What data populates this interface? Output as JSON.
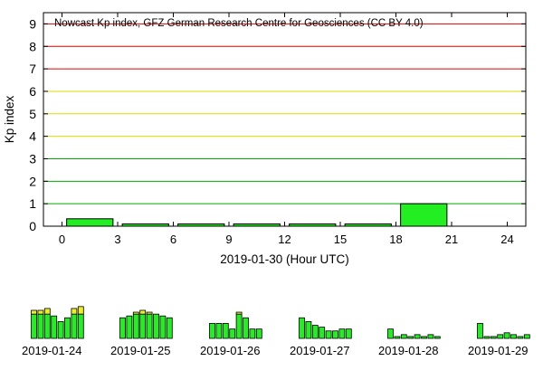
{
  "chart_data": [
    {
      "type": "bar",
      "title": "Nowcast Kp index, GFZ German Research Centre for Geosciences (CC BY 4.0)",
      "xlabel": "2019-01-30 (Hour UTC)",
      "ylabel": "Kp index",
      "xlim": [
        -1,
        25
      ],
      "ylim": [
        0,
        9.5
      ],
      "x_ticks": [
        0,
        3,
        6,
        9,
        12,
        15,
        18,
        21,
        24
      ],
      "y_ticks": [
        0,
        1,
        2,
        3,
        4,
        5,
        6,
        7,
        8,
        9
      ],
      "bar_width_hours": 2.5,
      "bars": [
        {
          "x": 1.5,
          "value": 0.33
        },
        {
          "x": 4.5,
          "value": 0.1
        },
        {
          "x": 7.5,
          "value": 0.1
        },
        {
          "x": 10.5,
          "value": 0.1
        },
        {
          "x": 13.5,
          "value": 0.1
        },
        {
          "x": 16.5,
          "value": 0.1
        },
        {
          "x": 19.5,
          "value": 1.0
        }
      ],
      "gridlines": [
        {
          "y": 1,
          "color": "#00aa00"
        },
        {
          "y": 2,
          "color": "#00aa00"
        },
        {
          "y": 3,
          "color": "#00aa00"
        },
        {
          "y": 4,
          "color": "#dddd00"
        },
        {
          "y": 5,
          "color": "#dddd00"
        },
        {
          "y": 6,
          "color": "#dddd00"
        },
        {
          "y": 7,
          "color": "#dd0000"
        },
        {
          "y": 8,
          "color": "#dd0000"
        },
        {
          "y": 9,
          "color": "#dd0000"
        }
      ],
      "colors": {
        "bar": "#22ee22",
        "bar_stroke": "#000000",
        "warn": "#eeee22"
      },
      "grid": true
    },
    {
      "type": "bar",
      "label": "2019-01-24",
      "values": [
        5.0,
        5.0,
        5.33,
        4.0,
        3.0,
        3.67,
        5.33,
        5.67
      ],
      "threshold": 4.33,
      "ylim": [
        0,
        9
      ]
    },
    {
      "type": "bar",
      "label": "2019-01-25",
      "values": [
        3.67,
        4.0,
        4.67,
        5.0,
        4.67,
        4.33,
        4.0,
        3.67
      ],
      "threshold": 4.33,
      "ylim": [
        0,
        9
      ]
    },
    {
      "type": "bar",
      "label": "2019-01-26",
      "values": [
        2.67,
        2.67,
        2.67,
        1.67,
        4.67,
        3.67,
        1.67,
        1.67
      ],
      "threshold": 4.33,
      "ylim": [
        0,
        9
      ]
    },
    {
      "type": "bar",
      "label": "2019-01-27",
      "values": [
        3.67,
        3.0,
        2.33,
        2.0,
        1.33,
        1.33,
        1.67,
        1.67
      ],
      "threshold": 4.33,
      "ylim": [
        0,
        9
      ]
    },
    {
      "type": "bar",
      "label": "2019-01-28",
      "values": [
        1.67,
        0.33,
        0.67,
        0.33,
        0.67,
        0.33,
        0.67,
        0.33
      ],
      "threshold": 4.33,
      "ylim": [
        0,
        9
      ]
    },
    {
      "type": "bar",
      "label": "2019-01-29",
      "values": [
        2.67,
        0.33,
        0.33,
        0.67,
        1.0,
        0.67,
        0.33,
        0.67
      ],
      "threshold": 4.33,
      "ylim": [
        0,
        9
      ]
    }
  ]
}
